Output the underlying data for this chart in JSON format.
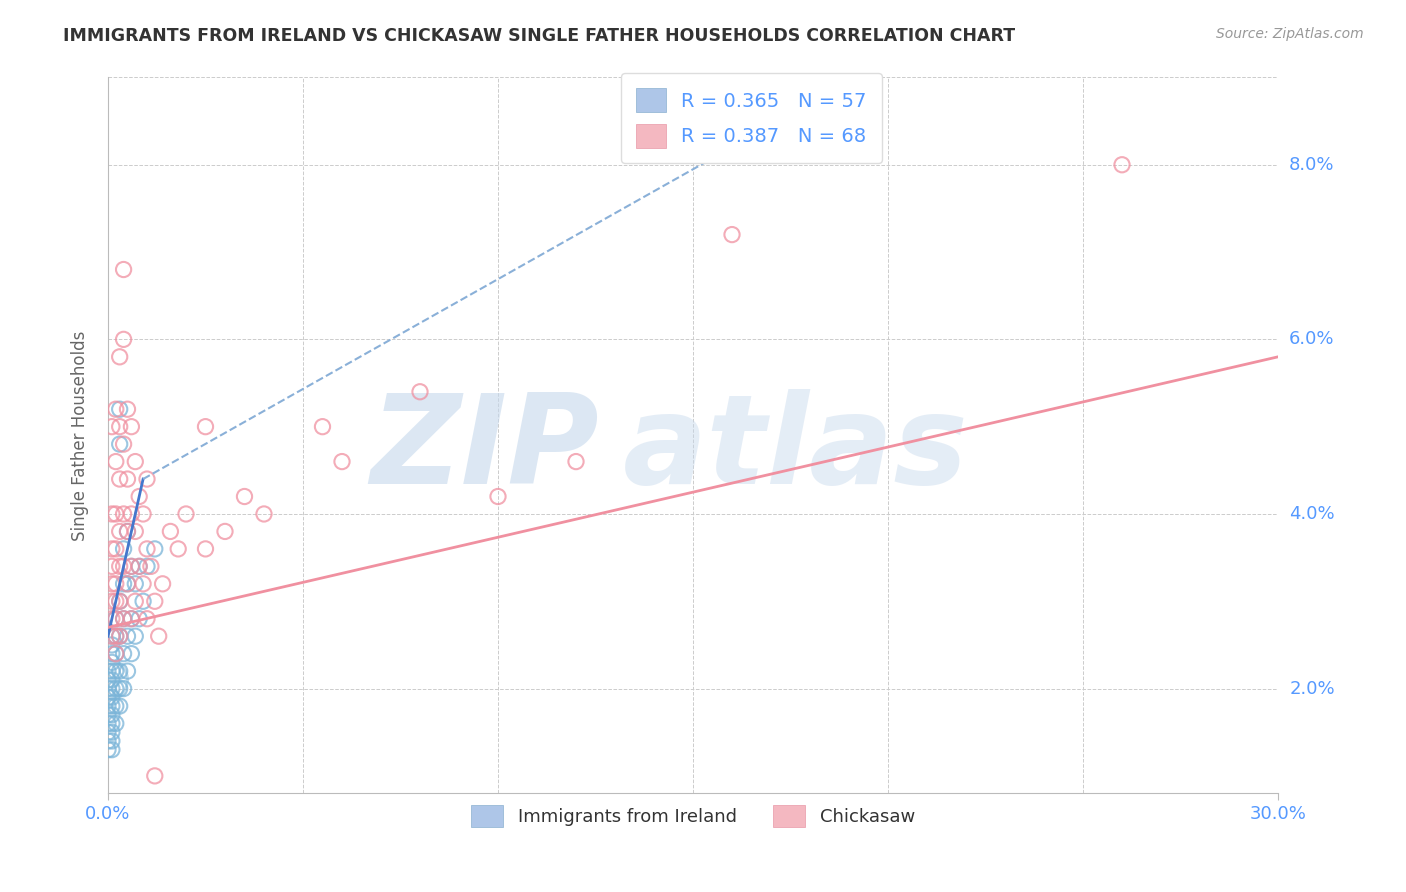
{
  "title": "IMMIGRANTS FROM IRELAND VS CHICKASAW SINGLE FATHER HOUSEHOLDS CORRELATION CHART",
  "source": "Source: ZipAtlas.com",
  "ylabel": "Single Father Households",
  "y_ticks": [
    0.02,
    0.04,
    0.06,
    0.08
  ],
  "y_tick_labels": [
    "2.0%",
    "4.0%",
    "6.0%",
    "8.0%"
  ],
  "xlim": [
    0.0,
    0.3
  ],
  "ylim": [
    0.008,
    0.09
  ],
  "legend_entries": [
    {
      "label": "R = 0.365   N = 57",
      "color": "#aec6e8"
    },
    {
      "label": "R = 0.387   N = 68",
      "color": "#f4b8c1"
    }
  ],
  "legend_labels_bottom": [
    "Immigrants from Ireland",
    "Chickasaw"
  ],
  "blue_color": "#7ab4d8",
  "pink_color": "#f090a0",
  "blue_scatter": [
    [
      0.0,
      0.013
    ],
    [
      0.0,
      0.014
    ],
    [
      0.0,
      0.015
    ],
    [
      0.0,
      0.016
    ],
    [
      0.0,
      0.017
    ],
    [
      0.0,
      0.018
    ],
    [
      0.0,
      0.019
    ],
    [
      0.0,
      0.02
    ],
    [
      0.0,
      0.021
    ],
    [
      0.0,
      0.022
    ],
    [
      0.001,
      0.013
    ],
    [
      0.001,
      0.014
    ],
    [
      0.001,
      0.015
    ],
    [
      0.001,
      0.016
    ],
    [
      0.001,
      0.017
    ],
    [
      0.001,
      0.018
    ],
    [
      0.001,
      0.019
    ],
    [
      0.001,
      0.02
    ],
    [
      0.001,
      0.021
    ],
    [
      0.001,
      0.022
    ],
    [
      0.001,
      0.023
    ],
    [
      0.001,
      0.024
    ],
    [
      0.001,
      0.025
    ],
    [
      0.001,
      0.026
    ],
    [
      0.002,
      0.016
    ],
    [
      0.002,
      0.018
    ],
    [
      0.002,
      0.02
    ],
    [
      0.002,
      0.022
    ],
    [
      0.002,
      0.024
    ],
    [
      0.002,
      0.026
    ],
    [
      0.002,
      0.028
    ],
    [
      0.003,
      0.018
    ],
    [
      0.003,
      0.02
    ],
    [
      0.003,
      0.022
    ],
    [
      0.003,
      0.026
    ],
    [
      0.003,
      0.03
    ],
    [
      0.003,
      0.048
    ],
    [
      0.003,
      0.052
    ],
    [
      0.004,
      0.02
    ],
    [
      0.004,
      0.024
    ],
    [
      0.004,
      0.028
    ],
    [
      0.004,
      0.032
    ],
    [
      0.004,
      0.036
    ],
    [
      0.005,
      0.022
    ],
    [
      0.005,
      0.026
    ],
    [
      0.005,
      0.032
    ],
    [
      0.005,
      0.038
    ],
    [
      0.006,
      0.024
    ],
    [
      0.006,
      0.028
    ],
    [
      0.006,
      0.034
    ],
    [
      0.007,
      0.026
    ],
    [
      0.007,
      0.032
    ],
    [
      0.008,
      0.028
    ],
    [
      0.008,
      0.034
    ],
    [
      0.009,
      0.03
    ],
    [
      0.01,
      0.034
    ],
    [
      0.012,
      0.036
    ]
  ],
  "pink_scatter": [
    [
      0.001,
      0.026
    ],
    [
      0.001,
      0.028
    ],
    [
      0.001,
      0.03
    ],
    [
      0.001,
      0.032
    ],
    [
      0.001,
      0.034
    ],
    [
      0.001,
      0.036
    ],
    [
      0.001,
      0.04
    ],
    [
      0.001,
      0.05
    ],
    [
      0.002,
      0.024
    ],
    [
      0.002,
      0.026
    ],
    [
      0.002,
      0.028
    ],
    [
      0.002,
      0.03
    ],
    [
      0.002,
      0.032
    ],
    [
      0.002,
      0.036
    ],
    [
      0.002,
      0.04
    ],
    [
      0.002,
      0.046
    ],
    [
      0.002,
      0.052
    ],
    [
      0.003,
      0.026
    ],
    [
      0.003,
      0.03
    ],
    [
      0.003,
      0.034
    ],
    [
      0.003,
      0.038
    ],
    [
      0.003,
      0.044
    ],
    [
      0.003,
      0.05
    ],
    [
      0.003,
      0.058
    ],
    [
      0.004,
      0.028
    ],
    [
      0.004,
      0.034
    ],
    [
      0.004,
      0.04
    ],
    [
      0.004,
      0.048
    ],
    [
      0.004,
      0.06
    ],
    [
      0.004,
      0.068
    ],
    [
      0.005,
      0.032
    ],
    [
      0.005,
      0.038
    ],
    [
      0.005,
      0.044
    ],
    [
      0.005,
      0.052
    ],
    [
      0.006,
      0.028
    ],
    [
      0.006,
      0.034
    ],
    [
      0.006,
      0.04
    ],
    [
      0.006,
      0.05
    ],
    [
      0.007,
      0.03
    ],
    [
      0.007,
      0.038
    ],
    [
      0.007,
      0.046
    ],
    [
      0.008,
      0.034
    ],
    [
      0.008,
      0.042
    ],
    [
      0.009,
      0.032
    ],
    [
      0.009,
      0.04
    ],
    [
      0.01,
      0.028
    ],
    [
      0.01,
      0.036
    ],
    [
      0.01,
      0.044
    ],
    [
      0.011,
      0.034
    ],
    [
      0.012,
      0.01
    ],
    [
      0.012,
      0.03
    ],
    [
      0.013,
      0.026
    ],
    [
      0.014,
      0.032
    ],
    [
      0.016,
      0.038
    ],
    [
      0.018,
      0.036
    ],
    [
      0.02,
      0.04
    ],
    [
      0.025,
      0.036
    ],
    [
      0.025,
      0.05
    ],
    [
      0.03,
      0.038
    ],
    [
      0.035,
      0.042
    ],
    [
      0.04,
      0.04
    ],
    [
      0.055,
      0.05
    ],
    [
      0.06,
      0.046
    ],
    [
      0.08,
      0.054
    ],
    [
      0.1,
      0.042
    ],
    [
      0.12,
      0.046
    ],
    [
      0.16,
      0.072
    ],
    [
      0.26,
      0.08
    ]
  ],
  "blue_trend_solid": {
    "x_start": 0.0,
    "x_end": 0.009,
    "y_start": 0.026,
    "y_end": 0.044
  },
  "blue_trend_dashed": {
    "x_start": 0.009,
    "x_end": 0.16,
    "y_start": 0.044,
    "y_end": 0.082
  },
  "pink_trend": {
    "x_start": 0.0,
    "x_end": 0.3,
    "y_start": 0.027,
    "y_end": 0.058
  },
  "background_color": "#ffffff",
  "grid_color": "#cccccc",
  "title_color": "#333333",
  "axis_label_color": "#5599ff",
  "watermark_zip_color": "#c5d8ec",
  "watermark_atlas_color": "#c5d8ec"
}
